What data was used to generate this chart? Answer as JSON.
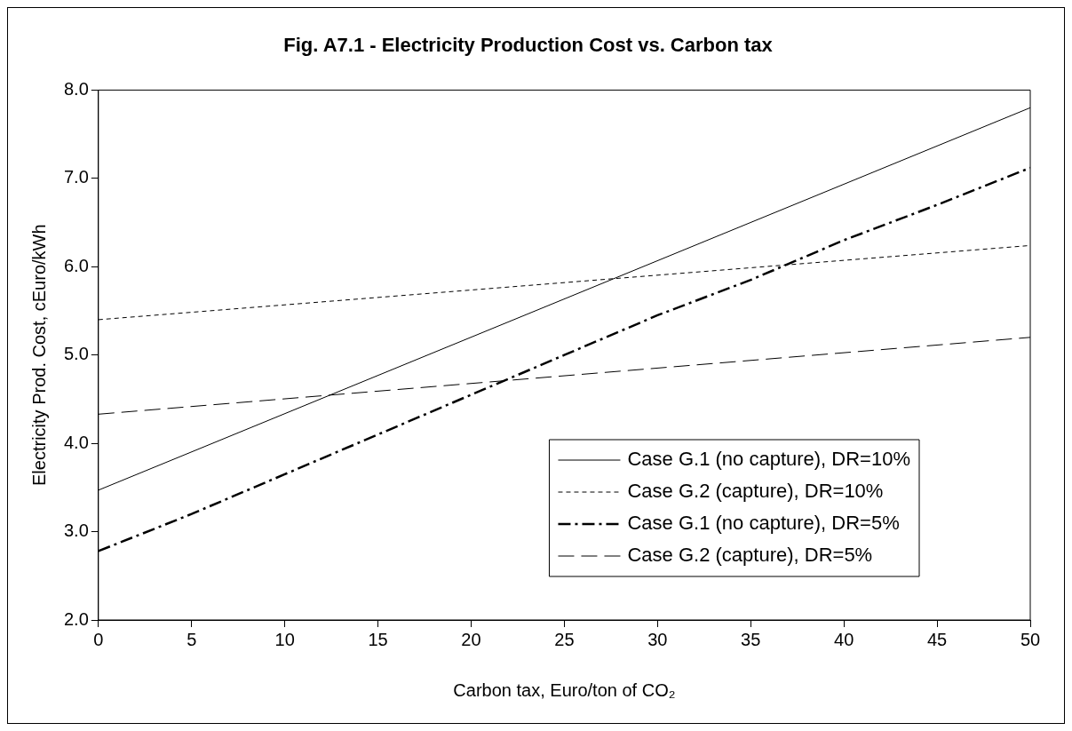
{
  "chart_data": {
    "type": "line",
    "title": "Fig. A7.1 - Electricity Production Cost vs. Carbon tax",
    "xlabel": "Carbon tax, Euro/ton of CO₂",
    "ylabel": "Electricity Prod. Cost, cEuro/kWh",
    "xlim": [
      0,
      50
    ],
    "xticks": [
      0,
      5,
      10,
      15,
      20,
      25,
      30,
      35,
      40,
      45,
      50
    ],
    "ylim": [
      2,
      8
    ],
    "yticks": [
      {
        "value": 2,
        "label": "2.0"
      },
      {
        "value": 3,
        "label": "3.0"
      },
      {
        "value": 4,
        "label": "4.0"
      },
      {
        "value": 5,
        "label": "5.0"
      },
      {
        "value": 6,
        "label": "6.0"
      },
      {
        "value": 7,
        "label": "7.0"
      },
      {
        "value": 8,
        "label": "8.0"
      }
    ],
    "grid": false,
    "legend": "bottom right",
    "marker": "none",
    "series": [
      {
        "name": "Case G.1 (no capture), DR=10%",
        "color": "#000000",
        "line_style": "solid",
        "x": [
          0,
          50
        ],
        "values": [
          3.47,
          7.8
        ]
      },
      {
        "name": "Case G.2 (capture), DR=10%",
        "color": "#000000",
        "line_style": "dotted",
        "x": [
          0,
          50
        ],
        "values": [
          5.4,
          6.24
        ]
      },
      {
        "name": "Case G.1 (no capture), DR=5%",
        "color": "#000000",
        "line_style": "dashdot",
        "x": [
          0,
          5,
          10,
          15,
          20,
          25,
          30,
          35,
          40,
          45,
          50
        ],
        "values": [
          2.78,
          3.2,
          3.65,
          4.1,
          4.55,
          5.0,
          5.45,
          5.85,
          6.3,
          6.7,
          7.12
        ]
      },
      {
        "name": "Case G.2 (capture), DR=5%",
        "color": "#000000",
        "line_style": "dashed",
        "x": [
          0,
          50
        ],
        "values": [
          4.33,
          5.2
        ]
      }
    ]
  }
}
